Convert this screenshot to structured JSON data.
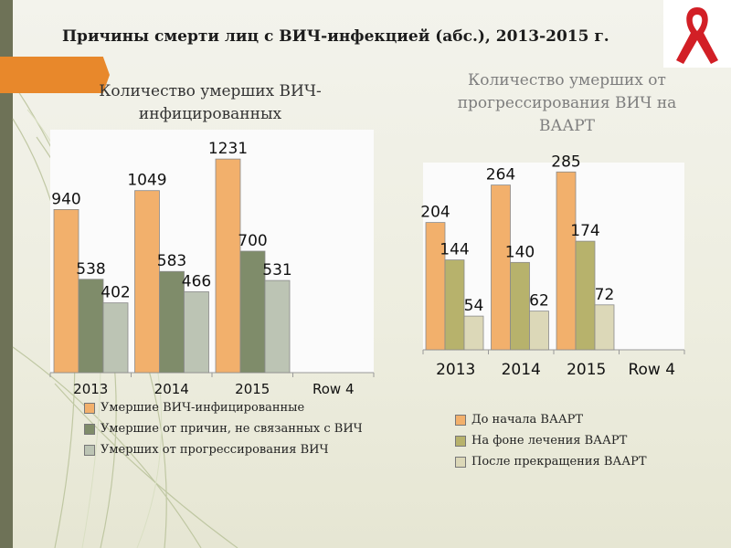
{
  "title": "Причины смерти лиц с ВИЧ-инфекцией (абс.), 2013-2015 г.",
  "chart_data": [
    {
      "type": "bar",
      "title": "Количество умерших ВИЧ-инфицированных",
      "categories": [
        "2013",
        "2014",
        "2015",
        "Row 4"
      ],
      "series": [
        {
          "name": "Умершие ВИЧ-инфицированные",
          "color": "#f2b06c",
          "values": [
            940,
            1049,
            1231,
            null
          ]
        },
        {
          "name": "Умершие от причин, не связанных с ВИЧ",
          "color": "#7f8c6a",
          "values": [
            538,
            583,
            700,
            null
          ]
        },
        {
          "name": "Умерших от прогрессирования ВИЧ",
          "color": "#bcc4b4",
          "values": [
            402,
            466,
            531,
            null
          ]
        }
      ],
      "ylim": [
        0,
        1400
      ],
      "grid": false,
      "legend": "bottom"
    },
    {
      "type": "bar",
      "title": "Количество умерших от прогрессирования ВИЧ на ВААРТ",
      "categories": [
        "2013",
        "2014",
        "2015",
        "Row 4"
      ],
      "series": [
        {
          "name": "До начала ВААРТ",
          "color": "#f2b06c",
          "values": [
            204,
            264,
            285,
            null
          ]
        },
        {
          "name": "На фоне лечения ВААРТ",
          "color": "#b7b26c",
          "values": [
            144,
            140,
            174,
            null
          ]
        },
        {
          "name": "После прекращения ВААРТ",
          "color": "#dcd8b8",
          "values": [
            54,
            62,
            72,
            null
          ]
        }
      ],
      "ylim": [
        0,
        300
      ],
      "grid": false,
      "legend": "bottom"
    }
  ]
}
